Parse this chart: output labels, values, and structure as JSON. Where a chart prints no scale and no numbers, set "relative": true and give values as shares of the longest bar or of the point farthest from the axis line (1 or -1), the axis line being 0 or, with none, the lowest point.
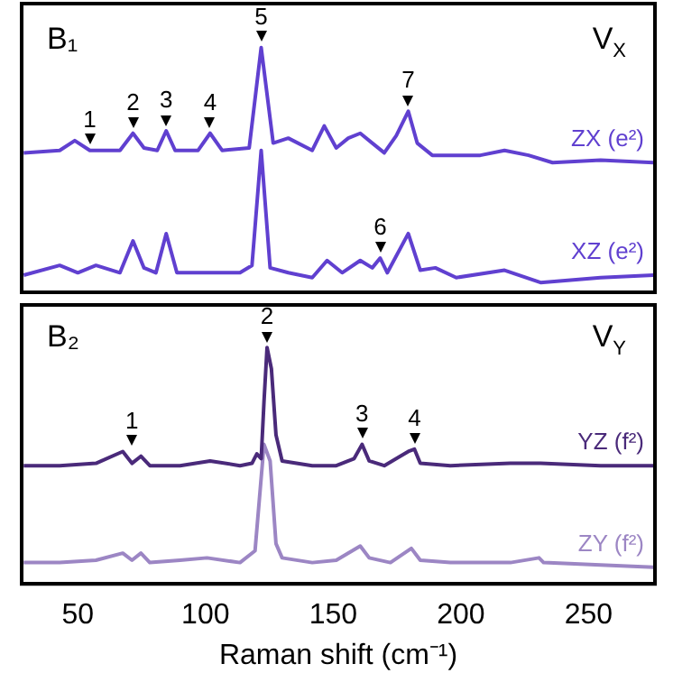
{
  "chart_data": [
    {
      "type": "line",
      "relative": true,
      "xlim": [
        28,
        276
      ],
      "xticks": [
        50,
        100,
        150,
        200,
        250
      ],
      "tick_labels": false,
      "grid": false,
      "legend": false,
      "marker": "none",
      "line_style": "solid",
      "annotations": [
        "B₁",
        "V$_{X}$",
        {
          "text": "1",
          "x": 54.7,
          "y": 0.58
        },
        {
          "text": "2",
          "x": 71.6,
          "y": 0.65
        },
        {
          "text": "3",
          "x": 84.6,
          "y": 0.66
        },
        {
          "text": "4",
          "x": 101.8,
          "y": 0.65
        },
        {
          "text": "5",
          "x": 121.8,
          "y": 1
        },
        {
          "text": "7",
          "x": 179.4,
          "y": 0.74
        },
        {
          "text": "6",
          "x": 168.4,
          "y": 0.14
        }
      ],
      "series": [
        {
          "name": "ZX (e²)",
          "color": "#6040d0",
          "x": [
            28.8,
            42.9,
            48.8,
            54.7,
            66.5,
            71.6,
            75.9,
            81.1,
            84.6,
            88.1,
            97.1,
            101.8,
            106.5,
            117.1,
            121.8,
            126.5,
            132.4,
            141.8,
            146.5,
            151.2,
            155.9,
            160.6,
            165.3,
            170,
            174.7,
            179.4,
            182.9,
            188.8,
            207.6,
            217.1,
            226.5,
            235.9,
            254.7,
            275.4
          ],
          "values": [
            0.57,
            0.58,
            0.62,
            0.58,
            0.58,
            0.65,
            0.59,
            0.58,
            0.66,
            0.58,
            0.58,
            0.65,
            0.58,
            0.59,
            1,
            0.61,
            0.63,
            0.58,
            0.68,
            0.59,
            0.63,
            0.65,
            0.61,
            0.57,
            0.64,
            0.74,
            0.61,
            0.56,
            0.56,
            0.58,
            0.56,
            0.53,
            0.54,
            0.53
          ]
        },
        {
          "name": "XZ (e²)",
          "color": "#6040d0",
          "x": [
            28.8,
            42.9,
            50,
            57.1,
            66.5,
            71.6,
            75.9,
            80.6,
            84.6,
            88.8,
            101.8,
            113.5,
            118.2,
            121.8,
            125.3,
            132.4,
            141.8,
            147.6,
            153.5,
            160.6,
            165.3,
            168.4,
            171.2,
            179.4,
            184.1,
            190,
            198.2,
            217.1,
            231.2,
            254.7,
            275.4
          ],
          "values": [
            0.07,
            0.11,
            0.08,
            0.11,
            0.08,
            0.21,
            0.1,
            0.08,
            0.24,
            0.08,
            0.08,
            0.08,
            0.11,
            0.58,
            0.1,
            0.08,
            0.06,
            0.13,
            0.08,
            0.13,
            0.1,
            0.14,
            0.08,
            0.24,
            0.09,
            0.1,
            0.06,
            0.09,
            0.04,
            0.06,
            0.07
          ]
        }
      ]
    },
    {
      "type": "line",
      "relative": true,
      "xlim": [
        28,
        276
      ],
      "xticks": [
        50,
        100,
        150,
        200,
        250
      ],
      "tick_labels": "x",
      "xlabel": "Raman shift (cm⁻¹)",
      "grid": false,
      "legend": false,
      "marker": "none",
      "line_style": "solid",
      "annotations": [
        "B₂",
        "V$_{Y}$",
        {
          "text": "1",
          "x": 71.2,
          "y": 0.56
        },
        {
          "text": "2",
          "x": 124.1,
          "y": 1
        },
        {
          "text": "3",
          "x": 161.3,
          "y": 0.59
        },
        {
          "text": "4",
          "x": 181.8,
          "y": 0.57
        }
      ],
      "series": [
        {
          "name": "YZ (f²)",
          "color": "#4a2a7a",
          "x": [
            28.8,
            42.9,
            57.1,
            67.6,
            71.2,
            74.7,
            78.2,
            90,
            101.8,
            113.5,
            118.2,
            120.1,
            121.8,
            122.9,
            124.1,
            125.8,
            127.6,
            130,
            141.8,
            151.2,
            158.2,
            161.3,
            164.1,
            170,
            179.4,
            181.8,
            184.1,
            195.9,
            219.4,
            231.2,
            254.7,
            275.4
          ],
          "values": [
            0.5,
            0.5,
            0.51,
            0.56,
            0.51,
            0.54,
            0.5,
            0.5,
            0.52,
            0.5,
            0.51,
            0.55,
            0.53,
            0.77,
            1,
            0.91,
            0.63,
            0.52,
            0.5,
            0.5,
            0.53,
            0.59,
            0.52,
            0.5,
            0.56,
            0.57,
            0.51,
            0.5,
            0.51,
            0.51,
            0.5,
            0.5
          ]
        },
        {
          "name": "ZY (f²)",
          "color": "#9c86c4",
          "x": [
            28.8,
            42.9,
            57.1,
            67.6,
            71.2,
            74.7,
            78.2,
            90,
            100.6,
            113.5,
            119.4,
            122.9,
            125.3,
            127.6,
            130,
            141.8,
            151.2,
            160.6,
            164.1,
            172.4,
            180.6,
            184.1,
            195.9,
            219.4,
            230.6,
            232.4,
            254.7,
            275.4
          ],
          "values": [
            0.09,
            0.09,
            0.1,
            0.13,
            0.1,
            0.13,
            0.09,
            0.1,
            0.11,
            0.09,
            0.14,
            0.59,
            0.52,
            0.17,
            0.11,
            0.09,
            0.1,
            0.16,
            0.11,
            0.09,
            0.15,
            0.1,
            0.09,
            0.09,
            0.11,
            0.09,
            0.08,
            0.07
          ]
        }
      ]
    }
  ]
}
